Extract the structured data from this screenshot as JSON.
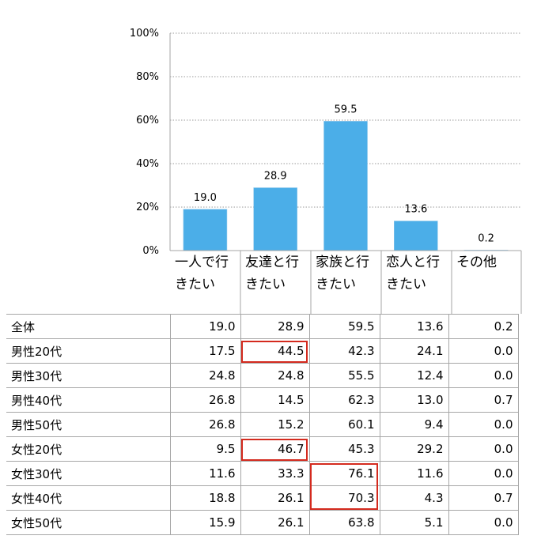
{
  "chart_data": {
    "type": "bar",
    "categories": [
      "一人で行きたい",
      "友達と行きたい",
      "家族と行きたい",
      "恋人と行きたい",
      "その他"
    ],
    "values": [
      19.0,
      28.9,
      59.5,
      13.6,
      0.2
    ],
    "value_labels": [
      "19.0",
      "28.9",
      "59.5",
      "13.6",
      "0.2"
    ],
    "yticks": [
      "0%",
      "20%",
      "40%",
      "60%",
      "80%",
      "100%"
    ],
    "ylim": [
      0,
      100
    ],
    "grid": true,
    "bar_color": "#4baee8",
    "highlight_color": "#d42a1e",
    "table": {
      "rows": [
        {
          "label": "全体",
          "values": [
            "19.0",
            "28.9",
            "59.5",
            "13.6",
            "0.2"
          ]
        },
        {
          "label": "男性20代",
          "values": [
            "17.5",
            "44.5",
            "42.3",
            "24.1",
            "0.0"
          ]
        },
        {
          "label": "男性30代",
          "values": [
            "24.8",
            "24.8",
            "55.5",
            "12.4",
            "0.0"
          ]
        },
        {
          "label": "男性40代",
          "values": [
            "26.8",
            "14.5",
            "62.3",
            "13.0",
            "0.7"
          ]
        },
        {
          "label": "男性50代",
          "values": [
            "26.8",
            "15.2",
            "60.1",
            "9.4",
            "0.0"
          ]
        },
        {
          "label": "女性20代",
          "values": [
            "9.5",
            "46.7",
            "45.3",
            "29.2",
            "0.0"
          ]
        },
        {
          "label": "女性30代",
          "values": [
            "11.6",
            "33.3",
            "76.1",
            "11.6",
            "0.0"
          ]
        },
        {
          "label": "女性40代",
          "values": [
            "18.8",
            "26.1",
            "70.3",
            "4.3",
            "0.7"
          ]
        },
        {
          "label": "女性50代",
          "values": [
            "15.9",
            "26.1",
            "63.8",
            "5.1",
            "0.0"
          ]
        }
      ],
      "highlighted_cells": [
        {
          "row": 1,
          "col": 1
        },
        {
          "row": 5,
          "col": 1
        },
        {
          "row": 6,
          "col": 2
        },
        {
          "row": 7,
          "col": 2
        }
      ]
    }
  }
}
